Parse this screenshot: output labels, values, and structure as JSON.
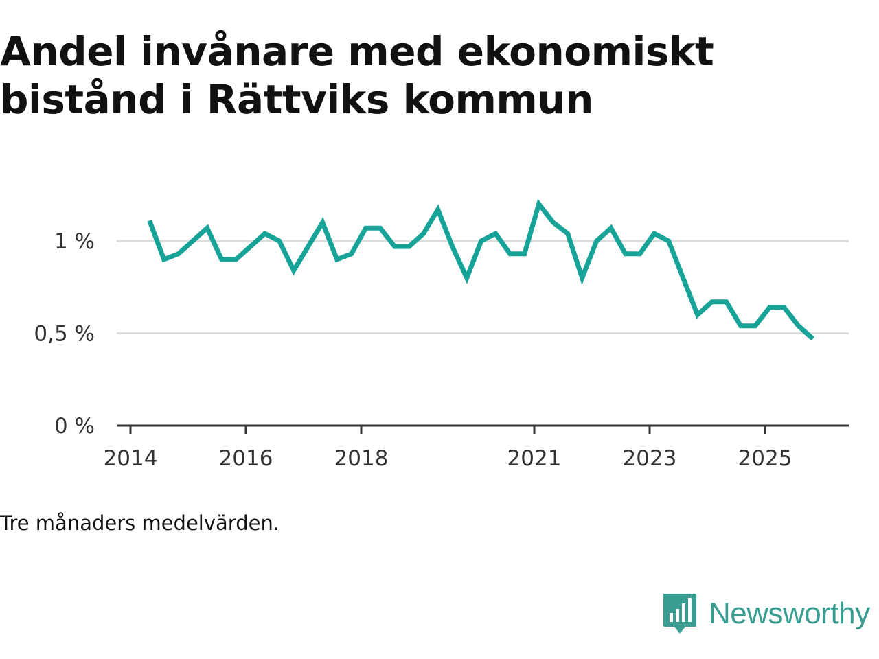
{
  "title": "Andel invånare med ekonomiskt bistånd i Rättviks kommun",
  "footnote": "Tre månaders medelvärden.",
  "brand": {
    "name": "Newsworthy",
    "icon": "newsworthy-logo-icon",
    "color": "#3a9d92"
  },
  "colors": {
    "line": "#17a398",
    "grid": "#dddddd",
    "axis": "#333333"
  },
  "chart_data": {
    "type": "line",
    "title": "Andel invånare med ekonomiskt bistånd i Rättviks kommun",
    "xlabel": "",
    "ylabel": "",
    "grid": true,
    "xlim": [
      2014,
      2026.5
    ],
    "ylim": [
      0,
      1.25
    ],
    "x_ticks": [
      {
        "value": 2014,
        "label": "2014"
      },
      {
        "value": 2016,
        "label": "2016"
      },
      {
        "value": 2018,
        "label": "2018"
      },
      {
        "value": 2021,
        "label": "2021"
      },
      {
        "value": 2023,
        "label": "2023"
      },
      {
        "value": 2025,
        "label": "2025"
      }
    ],
    "y_ticks": [
      {
        "value": 0,
        "label": "0 %"
      },
      {
        "value": 0.5,
        "label": "0,5 %"
      },
      {
        "value": 1.0,
        "label": "1 %"
      }
    ],
    "series": [
      {
        "name": "Andel invånare med ekonomiskt bistånd",
        "x": [
          2014.33,
          2014.58,
          2014.83,
          2015.08,
          2015.33,
          2015.58,
          2015.83,
          2016.08,
          2016.33,
          2016.58,
          2016.83,
          2017.08,
          2017.33,
          2017.58,
          2017.83,
          2018.08,
          2018.33,
          2018.58,
          2018.83,
          2019.08,
          2019.33,
          2019.58,
          2019.83,
          2020.08,
          2020.33,
          2020.58,
          2020.83,
          2021.08,
          2021.33,
          2021.58,
          2021.83,
          2022.08,
          2022.33,
          2022.58,
          2022.83,
          2023.08,
          2023.33,
          2023.58,
          2023.83,
          2024.08,
          2024.33,
          2024.58,
          2024.83,
          2025.08,
          2025.33,
          2025.58,
          2025.83
        ],
        "values": [
          1.11,
          0.9,
          0.93,
          1.0,
          1.07,
          0.9,
          0.9,
          0.97,
          1.04,
          1.0,
          0.84,
          0.97,
          1.1,
          0.9,
          0.93,
          1.07,
          1.07,
          0.97,
          0.97,
          1.04,
          1.17,
          0.97,
          0.8,
          1.0,
          1.04,
          0.93,
          0.93,
          1.2,
          1.1,
          1.04,
          0.8,
          1.0,
          1.07,
          0.93,
          0.93,
          1.04,
          1.0,
          0.8,
          0.6,
          0.67,
          0.67,
          0.54,
          0.54,
          0.64,
          0.64,
          0.54,
          0.47
        ]
      }
    ]
  }
}
